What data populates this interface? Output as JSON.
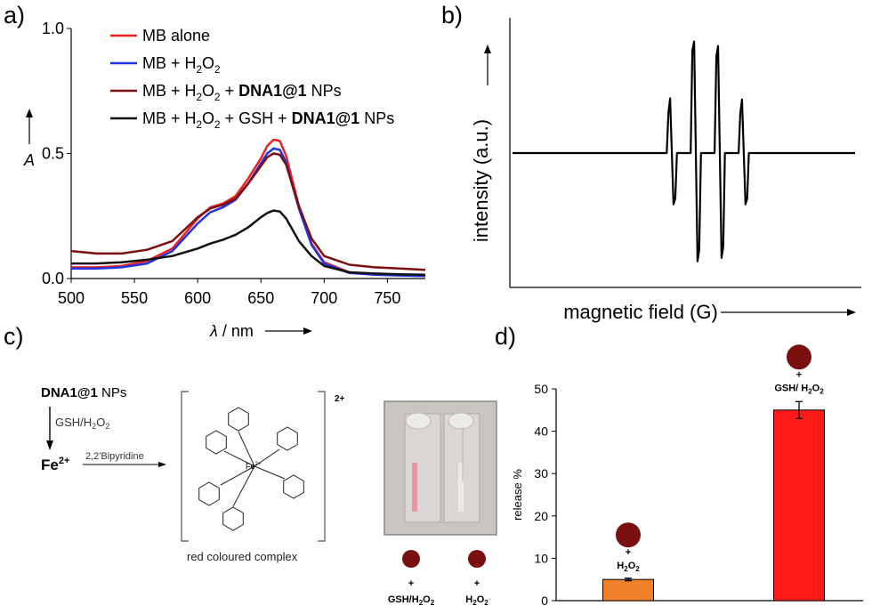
{
  "panels": {
    "a": "a)",
    "b": "b)",
    "c": "c)",
    "d": "d)"
  },
  "chart_data": [
    {
      "panel": "a",
      "type": "line",
      "xlabel_italic": "λ",
      "xlabel_rest": " / nm",
      "ylabel": "A",
      "xlim": [
        500,
        780
      ],
      "ylim": [
        0,
        1.0
      ],
      "x_ticks": [
        500,
        550,
        600,
        650,
        700,
        750
      ],
      "y_ticks": [
        "0.0",
        "0.5",
        "1.0"
      ],
      "y_tick_values": [
        0.0,
        0.5,
        1.0
      ],
      "legend_position": "top-right",
      "series": [
        {
          "name": "MB alone",
          "name_parts": [
            {
              "t": "MB alone"
            }
          ],
          "color": "#ee2222",
          "x": [
            500,
            520,
            540,
            560,
            580,
            600,
            610,
            620,
            630,
            640,
            650,
            655,
            660,
            665,
            670,
            675,
            680,
            690,
            700,
            720,
            740,
            760,
            780
          ],
          "y": [
            0.045,
            0.045,
            0.05,
            0.07,
            0.12,
            0.24,
            0.285,
            0.3,
            0.33,
            0.4,
            0.48,
            0.53,
            0.555,
            0.55,
            0.49,
            0.39,
            0.29,
            0.14,
            0.065,
            0.025,
            0.018,
            0.014,
            0.012
          ]
        },
        {
          "name": "MB + H2O2",
          "name_parts": [
            {
              "t": "MB + H"
            },
            {
              "t": "2",
              "sub": true
            },
            {
              "t": "O"
            },
            {
              "t": "2",
              "sub": true
            }
          ],
          "color": "#2233dd",
          "x": [
            500,
            520,
            540,
            560,
            580,
            600,
            610,
            620,
            630,
            640,
            650,
            655,
            660,
            665,
            670,
            675,
            680,
            690,
            700,
            720,
            740,
            760,
            780
          ],
          "y": [
            0.04,
            0.04,
            0.045,
            0.06,
            0.11,
            0.22,
            0.265,
            0.285,
            0.315,
            0.38,
            0.46,
            0.5,
            0.52,
            0.515,
            0.465,
            0.37,
            0.28,
            0.135,
            0.06,
            0.022,
            0.015,
            0.012,
            0.01
          ]
        },
        {
          "name": "MB + H2O2 + DNA1@1 NPs",
          "name_parts": [
            {
              "t": "MB + H"
            },
            {
              "t": "2",
              "sub": true
            },
            {
              "t": "O"
            },
            {
              "t": "2",
              "sub": true
            },
            {
              "t": " + "
            },
            {
              "t": "DNA1@1",
              "bold": true
            },
            {
              "t": " NPs"
            }
          ],
          "color": "#7a1010",
          "x": [
            500,
            520,
            540,
            560,
            580,
            600,
            610,
            620,
            630,
            640,
            650,
            655,
            660,
            665,
            670,
            675,
            680,
            690,
            700,
            720,
            740,
            760,
            780
          ],
          "y": [
            0.11,
            0.1,
            0.1,
            0.115,
            0.15,
            0.245,
            0.28,
            0.295,
            0.32,
            0.38,
            0.45,
            0.485,
            0.5,
            0.495,
            0.455,
            0.37,
            0.29,
            0.16,
            0.09,
            0.055,
            0.045,
            0.04,
            0.035
          ]
        },
        {
          "name": "MB + H2O2 + GSH + DNA1@1 NPs",
          "name_parts": [
            {
              "t": "MB + H"
            },
            {
              "t": "2",
              "sub": true
            },
            {
              "t": "O"
            },
            {
              "t": "2",
              "sub": true
            },
            {
              "t": " + GSH + "
            },
            {
              "t": "DNA1@1",
              "bold": true
            },
            {
              "t": " NPs"
            }
          ],
          "color": "#111111",
          "x": [
            500,
            520,
            540,
            560,
            580,
            600,
            610,
            620,
            630,
            640,
            650,
            655,
            660,
            665,
            670,
            675,
            680,
            690,
            700,
            720,
            740,
            760,
            780
          ],
          "y": [
            0.06,
            0.06,
            0.065,
            0.075,
            0.09,
            0.12,
            0.14,
            0.155,
            0.175,
            0.205,
            0.245,
            0.262,
            0.272,
            0.268,
            0.24,
            0.195,
            0.15,
            0.09,
            0.05,
            0.025,
            0.02,
            0.017,
            0.015
          ]
        }
      ]
    },
    {
      "panel": "b",
      "type": "line",
      "xlabel": "magnetic field (G)",
      "ylabel": "intensity (a.u.)",
      "ylim": [
        -1.0,
        1.0
      ],
      "series": [
        {
          "name": "",
          "color": "#000000",
          "x": [
            0,
            0.45,
            0.455,
            0.46,
            0.47,
            0.475,
            0.48,
            0.52,
            0.525,
            0.53,
            0.54,
            0.545,
            0.55,
            0.59,
            0.595,
            0.6,
            0.61,
            0.615,
            0.62,
            0.66,
            0.665,
            0.67,
            0.68,
            0.685,
            0.69,
            1.0
          ],
          "y": [
            0,
            0,
            0.35,
            0.48,
            -0.45,
            -0.4,
            0,
            0,
            0.9,
            0.98,
            -0.95,
            -0.85,
            0,
            0,
            0.85,
            0.94,
            -0.92,
            -0.82,
            0,
            0,
            0.35,
            0.47,
            -0.45,
            -0.4,
            0,
            0
          ]
        }
      ]
    },
    {
      "panel": "d",
      "type": "bar",
      "ylabel": "release %",
      "ylim": [
        0,
        50
      ],
      "y_ticks": [
        0,
        10,
        20,
        30,
        40,
        50
      ],
      "categories": [
        "H2O2",
        "GSH/ H2O2"
      ],
      "values": [
        5.0,
        45.0
      ],
      "errors": [
        0.3,
        2.0
      ],
      "colors": [
        "#f07f2a",
        "#ff1a1a"
      ]
    }
  ],
  "scheme": {
    "start_bold": "DNA1@1",
    "start_rest": " NPs",
    "step1": "GSH/H",
    "step1_sub": "2",
    "step1_mid": "O",
    "step1_sub2": "2",
    "product": "Fe",
    "product_sup": "2+",
    "reagent": "2,2'Bipyridine",
    "complex_charge": "2+",
    "complex_center": "Fe",
    "complex_center_sup": "2+",
    "complex_caption": "red coloured complex"
  },
  "photo_labels": {
    "left_plus": "+",
    "left_a": "GSH/H",
    "left_sub": "2",
    "left_b": "O",
    "left_sub2": "2",
    "right_plus": "+",
    "right_a": "H",
    "right_sub": "2",
    "right_b": "O",
    "right_sub2": "2"
  },
  "bar_labels": {
    "h2o2_plus": "+",
    "h2o2_a": "H",
    "h2o2_sub": "2",
    "h2o2_b": "O",
    "h2o2_sub2": "2",
    "gsh_plus": "+",
    "gsh_a": "GSH/ H",
    "gsh_sub": "2",
    "gsh_b": "O",
    "gsh_sub2": "2"
  }
}
